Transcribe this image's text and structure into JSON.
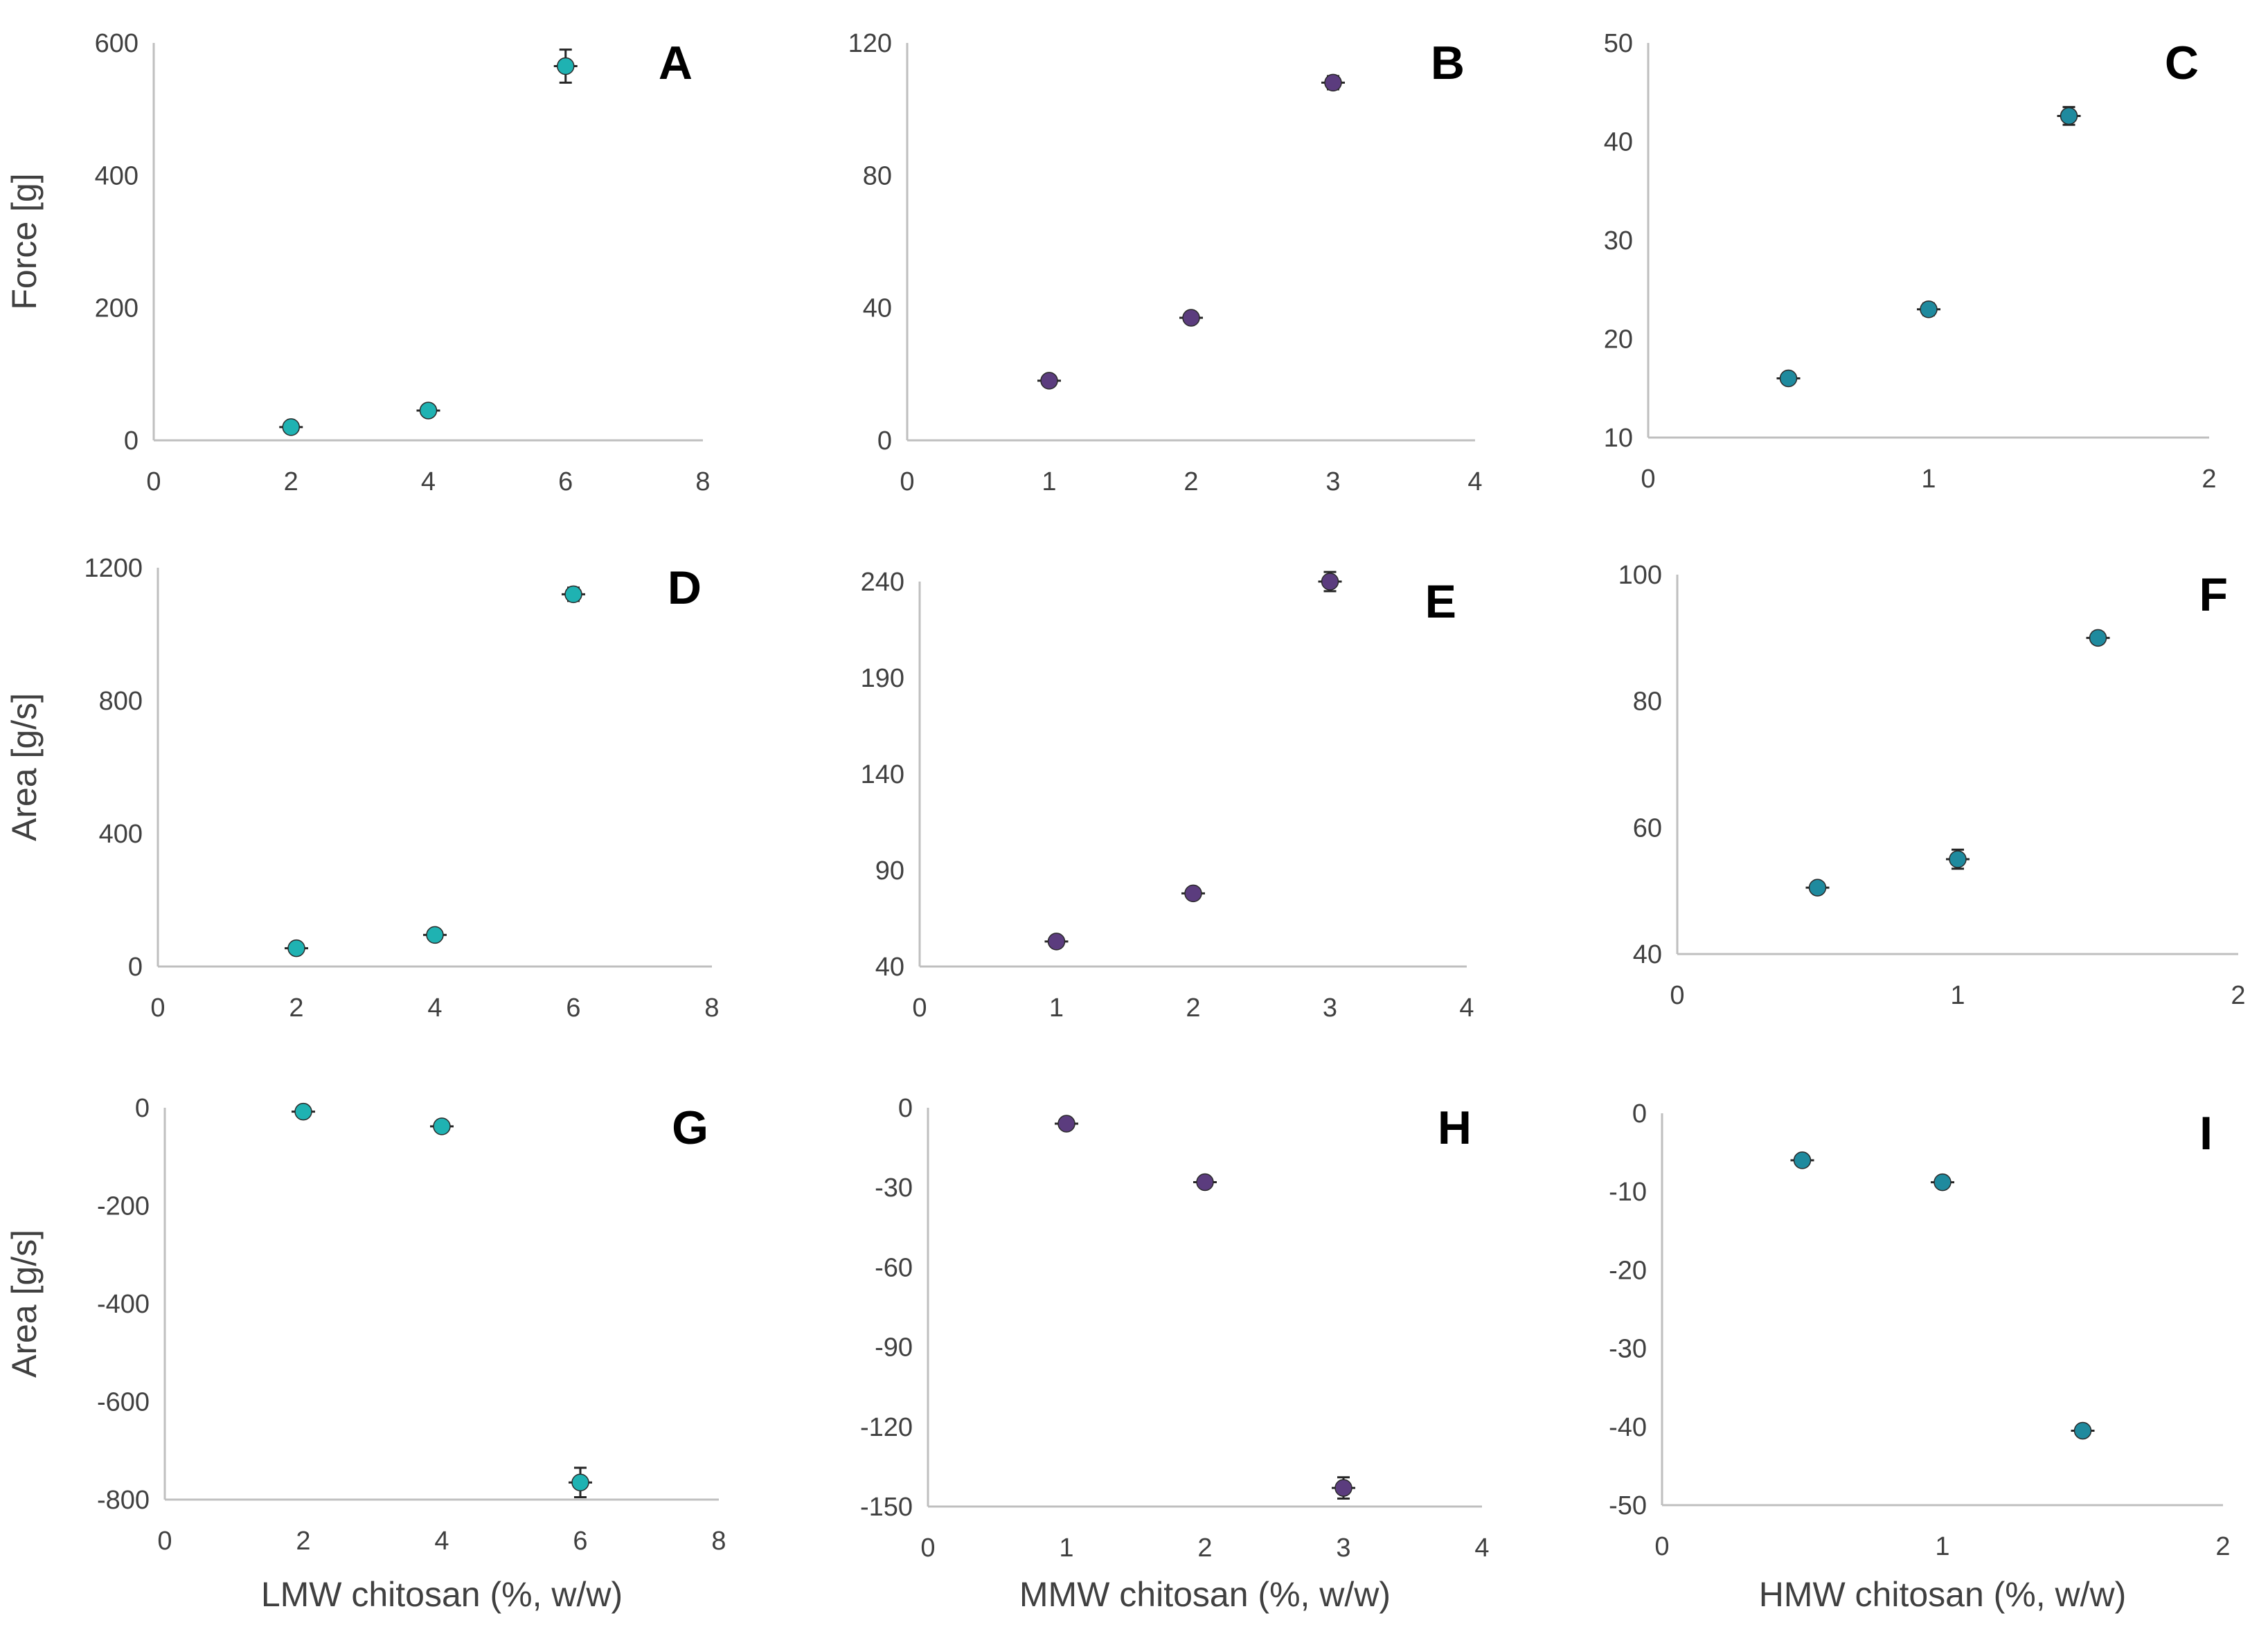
{
  "chart_data": [
    {
      "id": "A",
      "type": "scatter",
      "title": "A",
      "xlabel": "",
      "ylabel": "Force [g]",
      "xlim": [
        0,
        8
      ],
      "ylim": [
        0,
        600
      ],
      "xticks": [
        0,
        2,
        4,
        6,
        8
      ],
      "yticks": [
        0,
        200,
        400,
        600
      ],
      "x": [
        2,
        4,
        6
      ],
      "y": [
        20,
        45,
        565
      ],
      "yerr": [
        5,
        6,
        25
      ],
      "color": "#1fb2b2"
    },
    {
      "id": "B",
      "type": "scatter",
      "title": "B",
      "xlabel": "",
      "ylabel": "",
      "xlim": [
        0,
        4
      ],
      "ylim": [
        0,
        120
      ],
      "xticks": [
        0,
        1,
        2,
        3,
        4
      ],
      "yticks": [
        0,
        40,
        80,
        120
      ],
      "x": [
        1,
        2,
        3
      ],
      "y": [
        18,
        37,
        108
      ],
      "yerr": [
        1,
        1,
        2
      ],
      "color": "#5b3c7e"
    },
    {
      "id": "C",
      "type": "scatter",
      "title": "C",
      "xlabel": "",
      "ylabel": "",
      "xlim": [
        0,
        2
      ],
      "ylim": [
        10,
        50
      ],
      "xticks": [
        0,
        1,
        2
      ],
      "yticks": [
        10,
        20,
        30,
        40,
        50
      ],
      "x": [
        0.5,
        1,
        1.5
      ],
      "y": [
        16,
        23,
        42.6
      ],
      "yerr": [
        0.4,
        0.6,
        0.9
      ],
      "color": "#1f8a9e"
    },
    {
      "id": "D",
      "type": "scatter",
      "title": "D",
      "xlabel": "",
      "ylabel": "Area [g/s]",
      "xlim": [
        0,
        8
      ],
      "ylim": [
        0,
        1200
      ],
      "xticks": [
        0,
        2,
        4,
        6,
        8
      ],
      "yticks": [
        0,
        400,
        800,
        1200
      ],
      "x": [
        2,
        4,
        6
      ],
      "y": [
        55,
        95,
        1120
      ],
      "yerr": [
        6,
        8,
        20
      ],
      "color": "#1fb2b2"
    },
    {
      "id": "E",
      "type": "scatter",
      "title": "E",
      "xlabel": "",
      "ylabel": "",
      "xlim": [
        0,
        4
      ],
      "ylim": [
        40,
        240
      ],
      "xticks": [
        0,
        1,
        2,
        3,
        4
      ],
      "yticks": [
        40,
        90,
        140,
        190,
        240
      ],
      "x": [
        1,
        2,
        3
      ],
      "y": [
        53,
        78,
        240
      ],
      "yerr": [
        2,
        2,
        5
      ],
      "color": "#5b3c7e"
    },
    {
      "id": "F",
      "type": "scatter",
      "title": "F",
      "xlabel": "",
      "ylabel": "",
      "xlim": [
        0,
        2
      ],
      "ylim": [
        40,
        100
      ],
      "xticks": [
        0,
        1,
        2
      ],
      "yticks": [
        40,
        60,
        80,
        100
      ],
      "x": [
        0.5,
        1,
        1.5
      ],
      "y": [
        50.5,
        55,
        90
      ],
      "yerr": [
        0.8,
        1.5,
        0.9
      ],
      "color": "#1f8a9e"
    },
    {
      "id": "G",
      "type": "scatter",
      "title": "G",
      "xlabel": "LMW chitosan (%, w/w)",
      "ylabel": "Area [g/s]",
      "xlim": [
        0,
        8
      ],
      "ylim": [
        -800,
        0
      ],
      "xticks": [
        0,
        2,
        4,
        6,
        8
      ],
      "yticks": [
        0,
        -200,
        -400,
        -600,
        -800
      ],
      "x": [
        2,
        4,
        6
      ],
      "y": [
        -8,
        -38,
        -765
      ],
      "yerr": [
        3,
        4,
        30
      ],
      "color": "#1fb2b2"
    },
    {
      "id": "H",
      "type": "scatter",
      "title": "H",
      "xlabel": "MMW chitosan (%, w/w)",
      "ylabel": "",
      "xlim": [
        0,
        4
      ],
      "ylim": [
        -150,
        0
      ],
      "xticks": [
        0,
        1,
        2,
        3,
        4
      ],
      "yticks": [
        0,
        -30,
        -60,
        -90,
        -120,
        -150
      ],
      "x": [
        1,
        2,
        3
      ],
      "y": [
        -6,
        -28,
        -143
      ],
      "yerr": [
        1,
        1,
        4
      ],
      "color": "#5b3c7e"
    },
    {
      "id": "I",
      "type": "scatter",
      "title": "I",
      "xlabel": "HMW chitosan (%, w/w)",
      "ylabel": "",
      "xlim": [
        0,
        2
      ],
      "ylim": [
        -50,
        0
      ],
      "xticks": [
        0,
        1,
        2
      ],
      "yticks": [
        0,
        -10,
        -20,
        -30,
        -40,
        -50
      ],
      "x": [
        0.5,
        1,
        1.5
      ],
      "y": [
        -6,
        -8.8,
        -40.5
      ],
      "yerr": [
        0.3,
        0.3,
        0.5
      ],
      "color": "#1f8a9e"
    }
  ]
}
